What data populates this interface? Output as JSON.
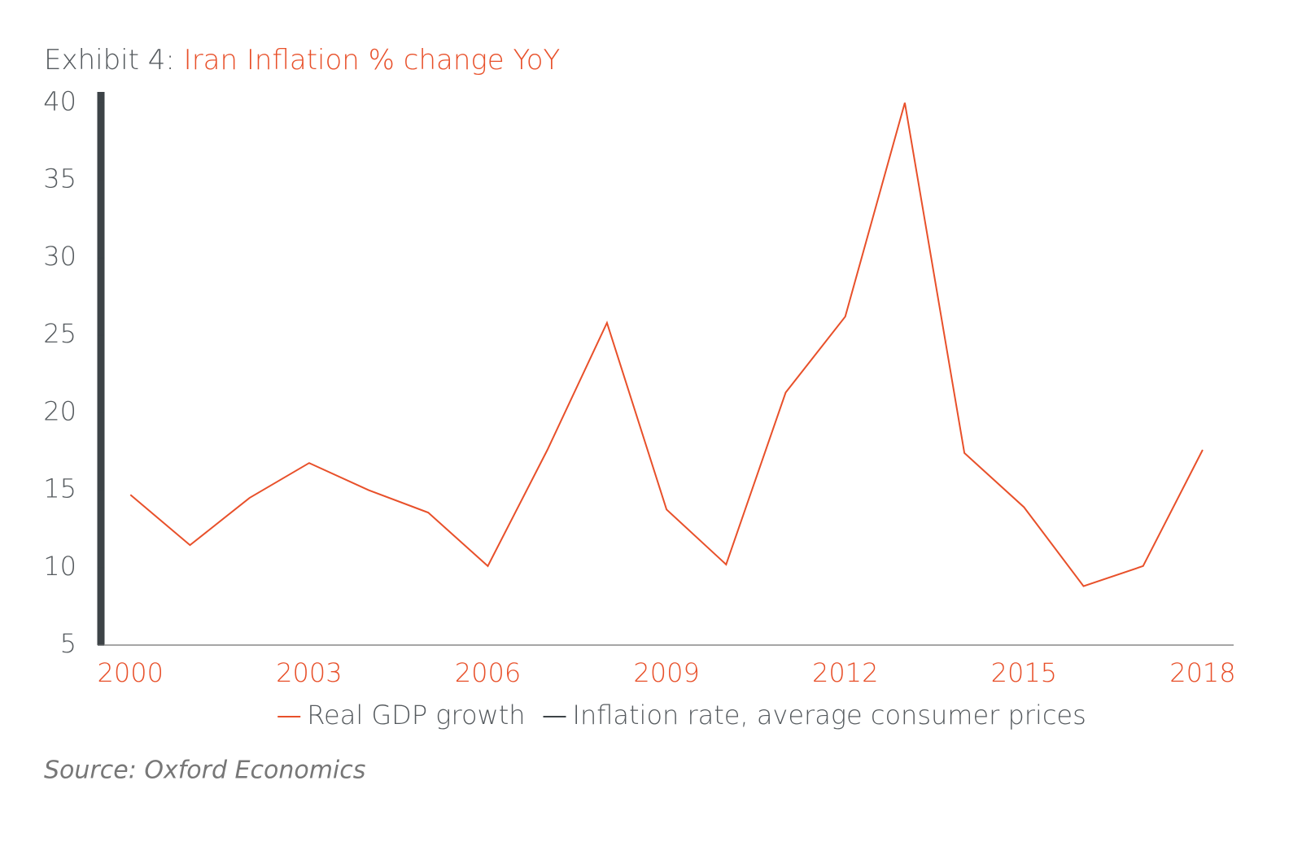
{
  "chart_data": {
    "type": "line",
    "title_label": "Exhibit 4:",
    "title": "Iran Inflation % change YoY",
    "source": "Source: Oxford Economics",
    "x": [
      2000,
      2001,
      2002,
      2003,
      2004,
      2005,
      2006,
      2007,
      2008,
      2009,
      2010,
      2011,
      2012,
      2013,
      2014,
      2015,
      2016,
      2017,
      2018
    ],
    "series": [
      {
        "name": "Real GDP growth",
        "color": "#e8502a",
        "values": [
          14.7,
          11.45,
          14.5,
          16.75,
          15.0,
          13.55,
          10.1,
          17.6,
          25.8,
          13.75,
          10.2,
          21.3,
          26.2,
          40,
          17.4,
          13.9,
          8.8,
          10.1,
          17.6
        ]
      },
      {
        "name": "Inflation rate, average consumer prices",
        "color": "#3d4347",
        "values": [
          null,
          null,
          null,
          null,
          null,
          null,
          null,
          null,
          null,
          null,
          null,
          null,
          null,
          null,
          null,
          null,
          null,
          null,
          null
        ]
      }
    ],
    "xlim": [
      1999.45,
      2018.52
    ],
    "xticks": [
      2000,
      2003,
      2006,
      2009,
      2012,
      2015,
      2018
    ],
    "ylim": [
      5,
      40.7
    ],
    "yticks": [
      5,
      10,
      15,
      20,
      25,
      30,
      35,
      40
    ],
    "grid": false
  }
}
